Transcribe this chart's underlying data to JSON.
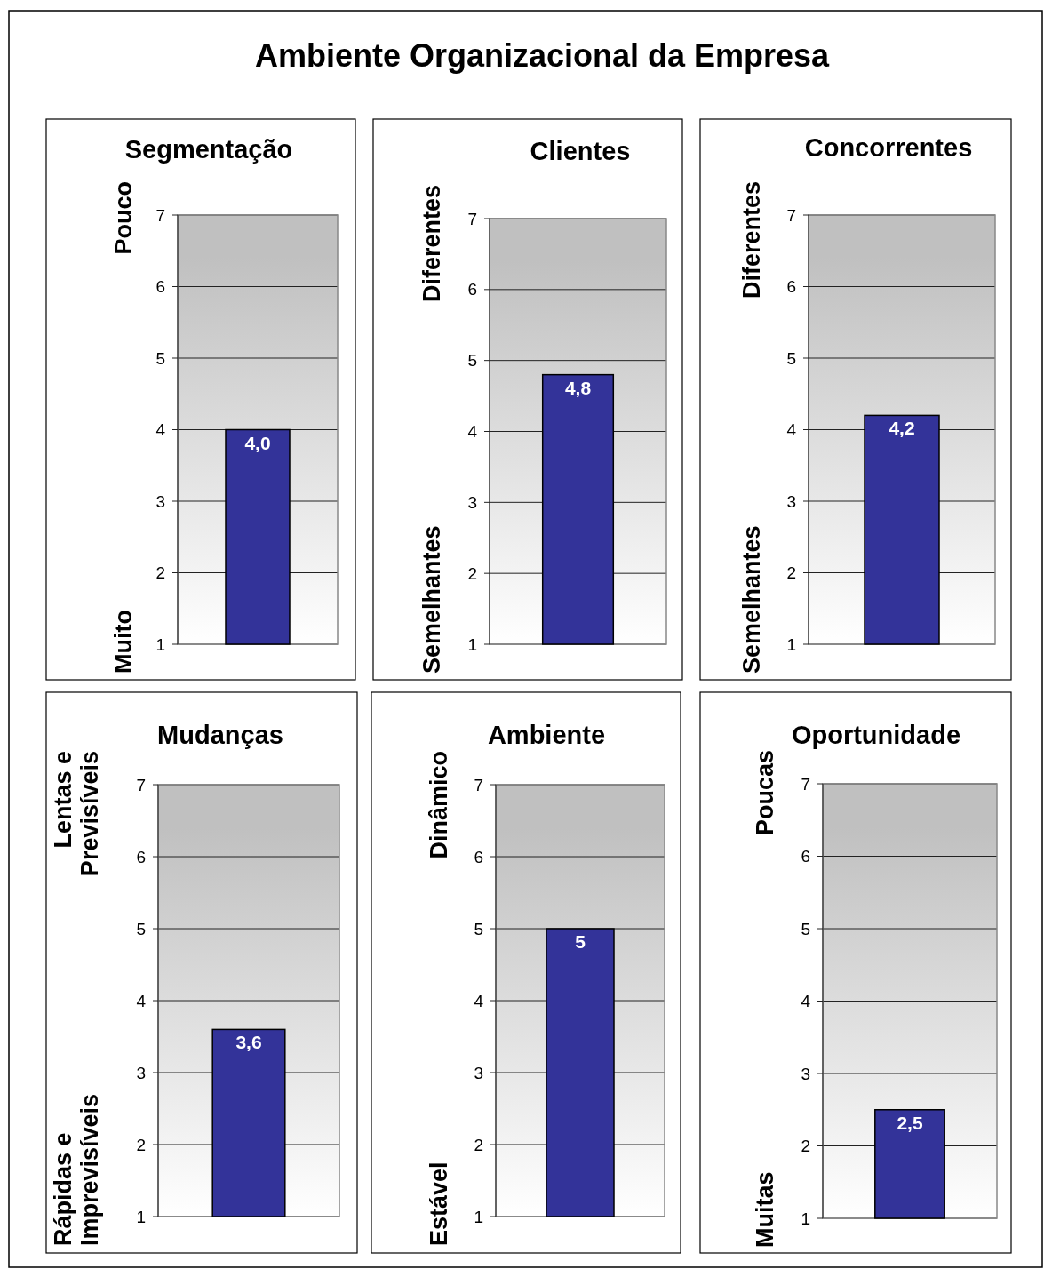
{
  "chart_data": [
    {
      "type": "other",
      "title": "Ambiente Organizacional da Empresa"
    },
    {
      "type": "bar",
      "title": "Segmentação",
      "categories": [
        null
      ],
      "values": [
        4.0
      ],
      "value_labels": [
        "4,0"
      ],
      "color": "#333399",
      "ylim": [
        1,
        7
      ],
      "yticks": [
        1,
        2,
        3,
        4,
        5,
        6,
        7
      ],
      "grid": "y",
      "annotations": [
        "Pouco",
        "Muito"
      ]
    },
    {
      "type": "bar",
      "title": "Clientes",
      "categories": [
        null
      ],
      "values": [
        4.8
      ],
      "value_labels": [
        "4,8"
      ],
      "color": "#333399",
      "ylim": [
        1,
        7
      ],
      "yticks": [
        1,
        2,
        3,
        4,
        5,
        6,
        7
      ],
      "grid": "y",
      "annotations": [
        "Diferentes",
        "Semelhantes"
      ]
    },
    {
      "type": "bar",
      "title": "Concorrentes",
      "categories": [
        null
      ],
      "values": [
        4.2
      ],
      "value_labels": [
        "4,2"
      ],
      "color": "#333399",
      "ylim": [
        1,
        7
      ],
      "yticks": [
        1,
        2,
        3,
        4,
        5,
        6,
        7
      ],
      "grid": "y",
      "annotations": [
        "Diferentes",
        "Semelhantes"
      ]
    },
    {
      "type": "bar",
      "title": "Mudanças",
      "categories": [
        null
      ],
      "values": [
        3.6
      ],
      "value_labels": [
        "3,6"
      ],
      "color": "#333399",
      "ylim": [
        1,
        7
      ],
      "yticks": [
        1,
        2,
        3,
        4,
        5,
        6,
        7
      ],
      "grid": "y",
      "annotations": [
        "Lentas e\nPrevisíveis",
        "Rápidas e\nImprevisíveis"
      ]
    },
    {
      "type": "bar",
      "title": "Ambiente",
      "categories": [
        null
      ],
      "values": [
        5
      ],
      "value_labels": [
        "5"
      ],
      "color": "#333399",
      "ylim": [
        1,
        7
      ],
      "yticks": [
        1,
        2,
        3,
        4,
        5,
        6,
        7
      ],
      "grid": "y",
      "annotations": [
        "Dinâmico",
        "Estável"
      ]
    },
    {
      "type": "bar",
      "title": "Oportunidade",
      "categories": [
        null
      ],
      "values": [
        2.5
      ],
      "value_labels": [
        "2,5"
      ],
      "color": "#333399",
      "ylim": [
        1,
        7
      ],
      "yticks": [
        1,
        2,
        3,
        4,
        5,
        6,
        7
      ],
      "grid": "y",
      "annotations": [
        "Poucas",
        "Muitas"
      ]
    }
  ]
}
